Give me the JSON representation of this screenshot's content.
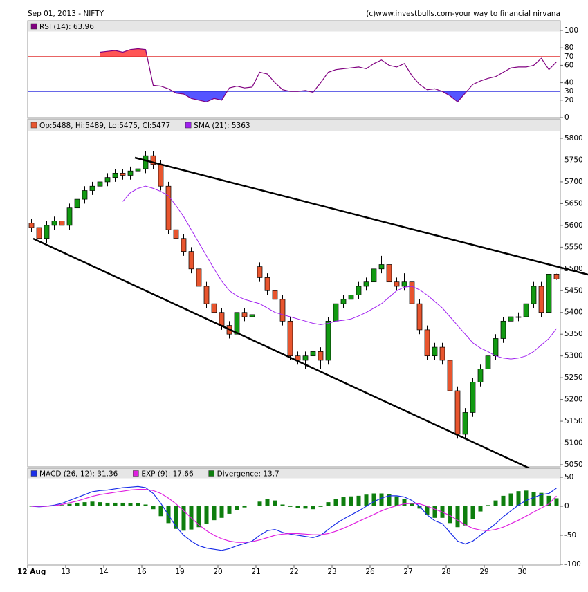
{
  "header": {
    "title": "Sep 01, 2013 -  NIFTY",
    "credit": "(c)www.investbulls.com-your way to financial nirvana"
  },
  "xaxis": {
    "labels": [
      "12 Aug",
      "13",
      "14",
      "16",
      "19",
      "20",
      "21",
      "22",
      "23",
      "26",
      "27",
      "28",
      "29",
      "30"
    ]
  },
  "chart_data": [
    {
      "type": "line",
      "series": [
        {
          "name": "RSI (14): 63.96",
          "color": "#800080",
          "values": [
            null,
            null,
            null,
            null,
            null,
            null,
            null,
            null,
            null,
            75,
            76,
            77,
            75,
            78,
            79,
            78,
            37,
            36,
            33,
            28,
            27,
            22,
            20,
            18,
            22,
            20,
            34,
            36,
            34,
            35,
            52,
            50,
            40,
            32,
            30,
            30,
            31,
            29,
            40,
            52,
            55,
            56,
            57,
            58,
            56,
            62,
            66,
            60,
            58,
            62,
            48,
            38,
            32,
            33,
            30,
            25,
            18,
            28,
            38,
            42,
            45,
            47,
            52,
            57,
            58,
            58,
            60,
            68,
            55,
            63.96
          ]
        }
      ],
      "levels": [
        {
          "value": 70,
          "color": "#e03030",
          "fill": "#ff5555"
        },
        {
          "value": 30,
          "color": "#3535e0",
          "fill": "#5555ff"
        }
      ],
      "ylim": [
        0,
        100
      ],
      "yticks": [
        0,
        20,
        40,
        60,
        80,
        100
      ]
    },
    {
      "type": "candlestick",
      "series": [
        {
          "name": "Op:5488, Hi:5489, Lo:5475, Cl:5477",
          "color": "#e8552e",
          "up_color": "#129a12",
          "open": [
            5605,
            5595,
            5570,
            5600,
            5610,
            5600,
            5640,
            5660,
            5680,
            5690,
            5700,
            5710,
            5720,
            5715,
            5725,
            5730,
            5760,
            5740,
            5690,
            5590,
            5570,
            5540,
            5500,
            5460,
            5420,
            5400,
            5370,
            5350,
            5400,
            5390,
            5505,
            5480,
            5450,
            5430,
            5380,
            5300,
            5290,
            5300,
            5310,
            5290,
            5380,
            5420,
            5430,
            5440,
            5460,
            5470,
            5500,
            5510,
            5470,
            5460,
            5470,
            5420,
            5360,
            5300,
            5320,
            5290,
            5220,
            5120,
            5170,
            5240,
            5270,
            5300,
            5340,
            5380,
            5390,
            5390,
            5420,
            5460,
            5400,
            5488
          ],
          "high": [
            5615,
            5605,
            5610,
            5620,
            5620,
            5650,
            5670,
            5690,
            5700,
            5710,
            5720,
            5730,
            5730,
            5735,
            5740,
            5770,
            5770,
            5750,
            5700,
            5600,
            5580,
            5550,
            5510,
            5470,
            5430,
            5410,
            5380,
            5410,
            5410,
            5405,
            5515,
            5490,
            5460,
            5440,
            5390,
            5310,
            5310,
            5320,
            5320,
            5390,
            5430,
            5440,
            5450,
            5470,
            5480,
            5510,
            5530,
            5520,
            5480,
            5490,
            5480,
            5430,
            5370,
            5330,
            5330,
            5300,
            5230,
            5180,
            5250,
            5280,
            5320,
            5350,
            5390,
            5400,
            5400,
            5430,
            5470,
            5470,
            5495,
            5489
          ],
          "low": [
            5585,
            5560,
            5560,
            5590,
            5590,
            5590,
            5630,
            5650,
            5670,
            5680,
            5690,
            5700,
            5705,
            5705,
            5715,
            5720,
            5730,
            5680,
            5580,
            5560,
            5530,
            5490,
            5450,
            5410,
            5390,
            5360,
            5340,
            5340,
            5380,
            5380,
            5470,
            5440,
            5420,
            5370,
            5290,
            5280,
            5270,
            5290,
            5270,
            5280,
            5370,
            5410,
            5420,
            5430,
            5450,
            5460,
            5490,
            5460,
            5450,
            5450,
            5410,
            5350,
            5290,
            5290,
            5280,
            5210,
            5110,
            5110,
            5160,
            5230,
            5260,
            5290,
            5330,
            5370,
            5380,
            5380,
            5410,
            5390,
            5390,
            5475
          ],
          "close": [
            5595,
            5570,
            5600,
            5610,
            5600,
            5640,
            5660,
            5680,
            5690,
            5700,
            5710,
            5720,
            5715,
            5725,
            5730,
            5760,
            5740,
            5690,
            5590,
            5570,
            5540,
            5500,
            5460,
            5420,
            5400,
            5370,
            5350,
            5400,
            5390,
            5395,
            5480,
            5450,
            5430,
            5380,
            5300,
            5290,
            5300,
            5310,
            5290,
            5380,
            5420,
            5430,
            5440,
            5460,
            5470,
            5500,
            5510,
            5470,
            5460,
            5470,
            5420,
            5360,
            5300,
            5320,
            5290,
            5220,
            5120,
            5170,
            5240,
            5270,
            5300,
            5340,
            5380,
            5390,
            5390,
            5420,
            5460,
            5400,
            5488,
            5477
          ]
        },
        {
          "name": "SMA (21): 5363",
          "color": "#a020f0",
          "values": [
            null,
            null,
            null,
            null,
            null,
            null,
            null,
            null,
            null,
            null,
            null,
            null,
            5655,
            5675,
            5685,
            5690,
            5685,
            5678,
            5668,
            5645,
            5620,
            5590,
            5560,
            5530,
            5500,
            5472,
            5450,
            5438,
            5430,
            5425,
            5420,
            5410,
            5400,
            5395,
            5390,
            5385,
            5380,
            5375,
            5372,
            5375,
            5380,
            5382,
            5385,
            5392,
            5400,
            5410,
            5420,
            5435,
            5450,
            5458,
            5460,
            5452,
            5440,
            5425,
            5410,
            5390,
            5370,
            5350,
            5330,
            5318,
            5310,
            5300,
            5295,
            5293,
            5295,
            5300,
            5310,
            5325,
            5340,
            5363
          ]
        }
      ],
      "ylim": [
        5050,
        5800
      ],
      "yticks": [
        5050,
        5100,
        5150,
        5200,
        5250,
        5300,
        5350,
        5400,
        5450,
        5500,
        5550,
        5600,
        5650,
        5700,
        5750,
        5800
      ]
    },
    {
      "type": "macd",
      "series": [
        {
          "name": "MACD (26, 12): 31.36",
          "color": "#1a2ee8",
          "values": [
            0,
            -1,
            0,
            2,
            5,
            10,
            15,
            20,
            25,
            27,
            28,
            30,
            32,
            33,
            34,
            32,
            22,
            5,
            -15,
            -35,
            -50,
            -60,
            -68,
            -72,
            -74,
            -76,
            -73,
            -68,
            -64,
            -60,
            -50,
            -42,
            -40,
            -45,
            -48,
            -50,
            -52,
            -54,
            -50,
            -40,
            -30,
            -22,
            -15,
            -8,
            0,
            8,
            14,
            18,
            18,
            16,
            10,
            0,
            -15,
            -25,
            -30,
            -45,
            -60,
            -65,
            -60,
            -50,
            -40,
            -30,
            -18,
            -8,
            2,
            10,
            15,
            20,
            22,
            31.36
          ]
        },
        {
          "name": "EXP (9): 17.66",
          "color": "#e020e0",
          "values": [
            0,
            0,
            0,
            1,
            3,
            6,
            9,
            13,
            17,
            20,
            22,
            24,
            26,
            28,
            29,
            29,
            27,
            22,
            14,
            4,
            -8,
            -20,
            -32,
            -42,
            -50,
            -56,
            -60,
            -62,
            -62,
            -61,
            -58,
            -54,
            -50,
            -48,
            -47,
            -47,
            -48,
            -49,
            -49,
            -47,
            -43,
            -38,
            -32,
            -26,
            -20,
            -14,
            -8,
            -3,
            1,
            4,
            5,
            4,
            0,
            -5,
            -10,
            -16,
            -24,
            -32,
            -38,
            -41,
            -42,
            -40,
            -36,
            -30,
            -24,
            -17,
            -10,
            -3,
            4,
            17.66
          ]
        },
        {
          "name": "Divergence: 13.7",
          "color": "#0e7e0e",
          "bars": true,
          "values": [
            0,
            -1,
            0,
            1,
            2,
            4,
            6,
            7,
            8,
            7,
            6,
            6,
            6,
            5,
            5,
            3,
            -5,
            -17,
            -29,
            -39,
            -42,
            -40,
            -36,
            -30,
            -24,
            -20,
            -13,
            -6,
            -2,
            1,
            8,
            12,
            10,
            3,
            -1,
            -3,
            -4,
            -5,
            -1,
            7,
            13,
            16,
            17,
            18,
            20,
            22,
            22,
            21,
            17,
            12,
            5,
            -4,
            -15,
            -20,
            -20,
            -29,
            -36,
            -33,
            -22,
            -9,
            2,
            10,
            18,
            22,
            26,
            27,
            25,
            23,
            18,
            13.7
          ]
        }
      ],
      "ylim": [
        -100,
        50
      ],
      "yticks": [
        -100,
        -50,
        0,
        50
      ]
    }
  ]
}
